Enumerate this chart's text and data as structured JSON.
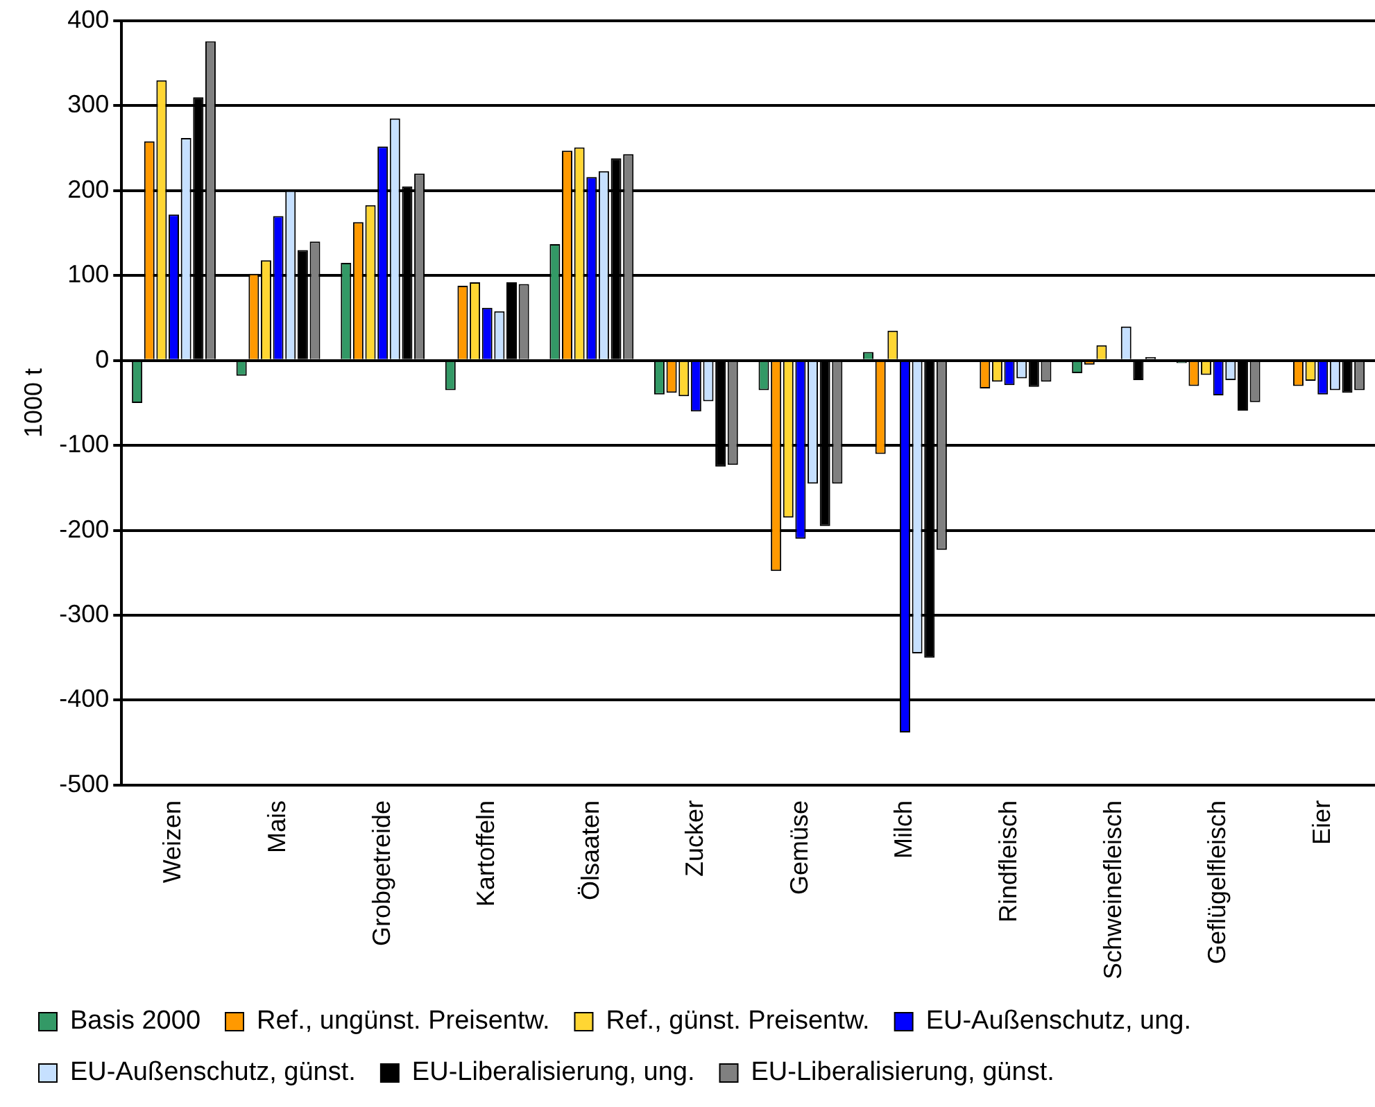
{
  "chart_data": {
    "type": "bar",
    "ylabel": "1000 t",
    "categories": [
      "Weizen",
      "Mais",
      "Grobgetreide",
      "Kartoffeln",
      "Ölsaaten",
      "Zucker",
      "Gemüse",
      "Milch",
      "Rindfleisch",
      "Schweinefleisch",
      "Geflügelfleisch",
      "Eier"
    ],
    "series": [
      {
        "name": "Basis 2000",
        "color": "#339966",
        "values": [
          -50,
          -18,
          115,
          -35,
          137,
          -40,
          -35,
          10,
          null,
          -15,
          -3,
          null
        ]
      },
      {
        "name": "Ref., ungünst. Preisentw.",
        "color": "#ff9900",
        "values": [
          258,
          102,
          163,
          88,
          247,
          -38,
          -248,
          -110,
          -33,
          -5,
          -30,
          -30
        ]
      },
      {
        "name": "Ref., günst. Preisentw.",
        "color": "#ffd633",
        "values": [
          330,
          118,
          183,
          92,
          251,
          -42,
          -185,
          35,
          -25,
          18,
          -17,
          -24
        ]
      },
      {
        "name": "EU-Außenschutz, ung.",
        "color": "#0000ff",
        "values": [
          172,
          170,
          252,
          62,
          216,
          -60,
          -210,
          -438,
          -29,
          null,
          -41,
          -40
        ]
      },
      {
        "name": "EU-Außenschutz, günst.",
        "color": "#c6e0ff",
        "values": [
          262,
          200,
          285,
          58,
          223,
          -48,
          -145,
          -345,
          -21,
          40,
          -23,
          -35
        ]
      },
      {
        "name": "EU-Liberalisierung, ung.",
        "color": "#000000",
        "values": [
          310,
          130,
          205,
          92,
          238,
          -125,
          -195,
          -350,
          -31,
          -23,
          -59,
          -38
        ]
      },
      {
        "name": "EU-Liberalisierung, günst.",
        "color": "#808080",
        "values": [
          376,
          140,
          220,
          90,
          243,
          -123,
          -145,
          -223,
          -25,
          4,
          -49,
          -35
        ]
      }
    ],
    "ylim": [
      -500,
      400
    ],
    "yticks": [
      -500,
      -400,
      -300,
      -200,
      -100,
      0,
      100,
      200,
      300,
      400
    ],
    "grid": "y",
    "legend": "bottom"
  }
}
